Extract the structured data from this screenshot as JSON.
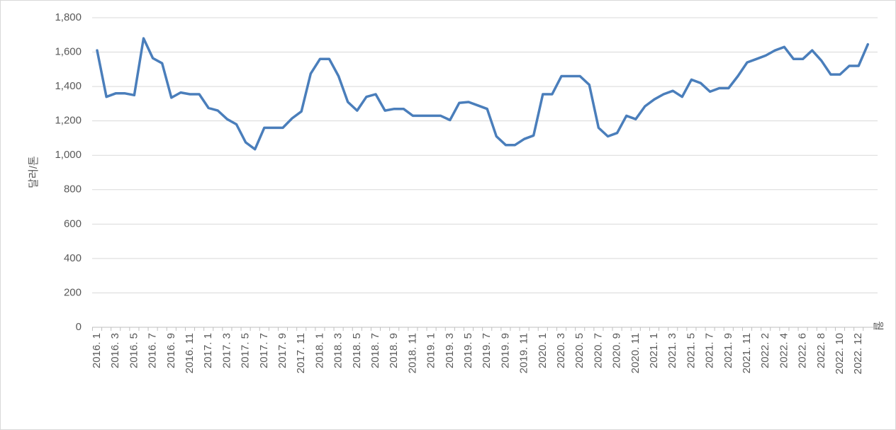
{
  "chart_data": {
    "type": "line",
    "y_label": "달러/톤",
    "x_label": "월",
    "categories": [
      "2016. 1",
      null,
      "2016. 3",
      null,
      "2016. 5",
      null,
      "2016. 7",
      null,
      "2016. 9",
      null,
      "2016. 11",
      null,
      "2017. 1",
      null,
      "2017. 3",
      null,
      "2017. 5",
      null,
      "2017. 7",
      null,
      "2017. 9",
      null,
      "2017. 11",
      null,
      "2018. 1",
      null,
      "2018. 3",
      null,
      "2018. 5",
      null,
      "2018. 7",
      null,
      "2018. 9",
      null,
      "2018. 11",
      null,
      "2019. 1",
      null,
      "2019. 3",
      null,
      "2019. 5",
      null,
      "2019. 7",
      null,
      "2019. 9",
      null,
      "2019. 11",
      null,
      "2020. 1",
      null,
      "2020. 3",
      null,
      "2020. 5",
      null,
      "2020. 7",
      null,
      "2020. 9",
      null,
      "2020. 11",
      null,
      "2021. 1",
      null,
      "2021. 3",
      null,
      "2021. 5",
      null,
      "2021. 7",
      null,
      "2021. 9",
      null,
      "2021. 11",
      null,
      "2022. 2",
      null,
      "2022. 4",
      null,
      "2022. 6",
      null,
      "2022. 8",
      null,
      "2022. 10",
      null,
      "2022. 12",
      null
    ],
    "values": [
      1610,
      1340,
      1360,
      1360,
      1350,
      1680,
      1565,
      1535,
      1335,
      1365,
      1355,
      1355,
      1275,
      1260,
      1210,
      1180,
      1075,
      1035,
      1160,
      1160,
      1160,
      1215,
      1255,
      1475,
      1560,
      1560,
      1460,
      1310,
      1260,
      1340,
      1355,
      1260,
      1270,
      1270,
      1230,
      1230,
      1230,
      1230,
      1205,
      1305,
      1310,
      1290,
      1270,
      1110,
      1060,
      1060,
      1095,
      1115,
      1355,
      1355,
      1460,
      1460,
      1460,
      1410,
      1160,
      1110,
      1130,
      1230,
      1210,
      1285,
      1325,
      1355,
      1375,
      1340,
      1440,
      1420,
      1370,
      1390,
      1390,
      1460,
      1540,
      1560,
      1580,
      1610,
      1630,
      1560,
      1560,
      1610,
      1550,
      1470,
      1470,
      1520,
      1520,
      1645
    ],
    "color": "#4a7ebb",
    "ylim": [
      0,
      1800
    ],
    "yticks": [
      0,
      200,
      400,
      600,
      800,
      {
        "value": 1000,
        "label": "1,000"
      },
      {
        "value": 1200,
        "label": "1,200"
      },
      {
        "value": 1400,
        "label": "1,400"
      },
      {
        "value": 1600,
        "label": "1,600"
      },
      {
        "value": 1800,
        "label": "1,800"
      }
    ],
    "grid": true
  }
}
